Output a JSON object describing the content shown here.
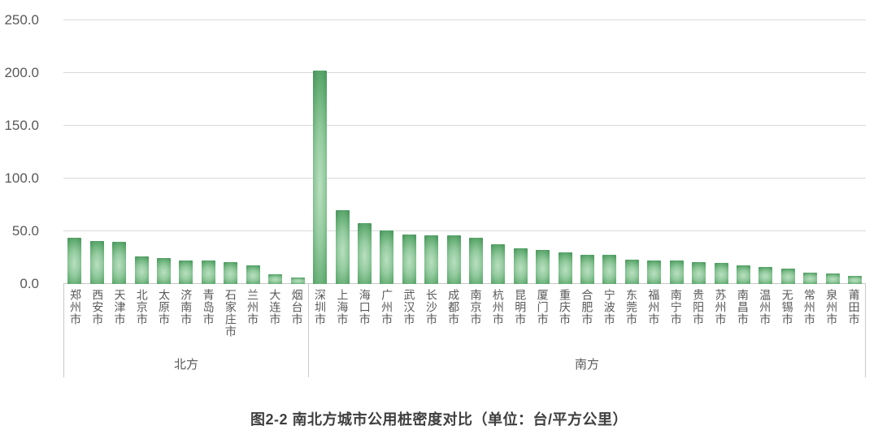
{
  "caption": "图2-2 南北方城市公用桩密度对比（单位：台/平方公里）",
  "chart_data": {
    "type": "bar",
    "title": "图2-2 南北方城市公用桩密度对比",
    "unit_label": "单位：台/平方公里",
    "ylabel": "",
    "xlabel": "",
    "ylim": [
      0,
      250
    ],
    "yticks": [
      0,
      50,
      100,
      150,
      200,
      250
    ],
    "ytick_labels": [
      "0.0",
      "50.0",
      "100.0",
      "150.0",
      "200.0",
      "250.0"
    ],
    "grid": true,
    "legend": "none",
    "bar_orientation": "vertical",
    "groups": [
      {
        "name": "北方",
        "categories": [
          "郑州市",
          "西安市",
          "天津市",
          "北京市",
          "太原市",
          "济南市",
          "青岛市",
          "石家庄市",
          "兰州市",
          "大连市",
          "烟台市"
        ],
        "values": [
          44,
          41,
          40,
          26,
          25,
          22,
          22,
          21,
          18,
          9,
          6
        ]
      },
      {
        "name": "南方",
        "categories": [
          "深圳市",
          "上海市",
          "海口市",
          "广州市",
          "武汉市",
          "长沙市",
          "成都市",
          "南京市",
          "杭州市",
          "昆明市",
          "厦门市",
          "重庆市",
          "合肥市",
          "宁波市",
          "东莞市",
          "福州市",
          "南宁市",
          "贵阳市",
          "苏州市",
          "南昌市",
          "温州市",
          "无锡市",
          "常州市",
          "泉州市",
          "莆田市"
        ],
        "values": [
          202,
          70,
          58,
          51,
          47,
          46,
          46,
          44,
          38,
          34,
          32,
          30,
          28,
          28,
          23,
          22,
          22,
          21,
          20,
          18,
          16,
          15,
          11,
          10,
          8
        ]
      }
    ],
    "colors": {
      "bar_gradient_center": "#b9e0bf",
      "bar_gradient_mid": "#93ca9e",
      "bar_gradient_edge": "#44905a",
      "gridline": "#d9d9d9",
      "axis_line": "#c9c9c9",
      "tick_label": "#595959",
      "caption_text": "#3f3f3f"
    }
  }
}
